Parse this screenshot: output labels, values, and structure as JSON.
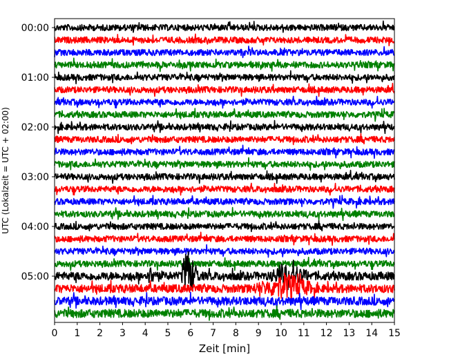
{
  "chart_data": {
    "type": "line",
    "title": "",
    "xlabel": "Zeit  [min]",
    "ylabel": "UTC (Lokalzeit = UTC + 02:00)",
    "xlim": [
      0,
      15
    ],
    "x_ticks": [
      "0",
      "1",
      "2",
      "3",
      "4",
      "5",
      "6",
      "7",
      "8",
      "9",
      "10",
      "11",
      "12",
      "13",
      "14",
      "15"
    ],
    "y_ticks": [
      "00:00",
      "01:00",
      "02:00",
      "03:00",
      "04:00",
      "05:00"
    ],
    "trace_interval_min": 15,
    "traces_per_hour": 4,
    "trace_count": 24,
    "trace_colors": [
      "#000000",
      "#ff0000",
      "#0000ff",
      "#008000"
    ],
    "events": [
      {
        "trace_index": 20,
        "x_start": 5.6,
        "x_end": 6.4,
        "peak_x": 5.9,
        "amplitude": "large"
      },
      {
        "trace_index": 20,
        "x_start": 9.5,
        "x_end": 11.2,
        "peak_x": 10.3,
        "amplitude": "medium"
      },
      {
        "trace_index": 21,
        "x_start": 8.8,
        "x_end": 11.5,
        "peak_x": 10.2,
        "amplitude": "medium"
      },
      {
        "trace_index": 20,
        "x_start": 4.0,
        "x_end": 4.6,
        "peak_x": 4.3,
        "amplitude": "small"
      }
    ],
    "grid": false,
    "legend": "none"
  }
}
